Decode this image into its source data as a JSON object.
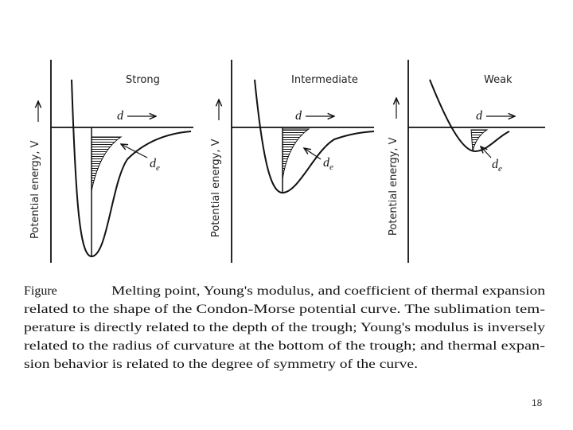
{
  "panels": [
    {
      "title": "Strong",
      "y_axis_label": "Potential energy, V",
      "distance_label": "d",
      "equilibrium_label": {
        "main": "d",
        "subscript": "e"
      }
    },
    {
      "title": "Intermediate",
      "y_axis_label": "Potential energy, V",
      "distance_label": "d",
      "equilibrium_label": {
        "main": "d",
        "subscript": "e"
      }
    },
    {
      "title": "Weak",
      "y_axis_label": "Potential energy, V",
      "distance_label": "d",
      "equilibrium_label": {
        "main": "d",
        "subscript": "e"
      }
    }
  ],
  "caption": {
    "label": "Figure",
    "lines": [
      "Melting point, Young's modulus, and coefficient of thermal expansion",
      "related to the shape of the Condon-Morse potential curve.  The sublimation tem-",
      "perature is directly related to the depth of the trough; Young's modulus is inversely",
      "related to the radius of curvature at the bottom of the trough; and thermal expan-",
      "sion behavior is related to the degree of symmetry of the curve."
    ]
  },
  "page_number": "18"
}
